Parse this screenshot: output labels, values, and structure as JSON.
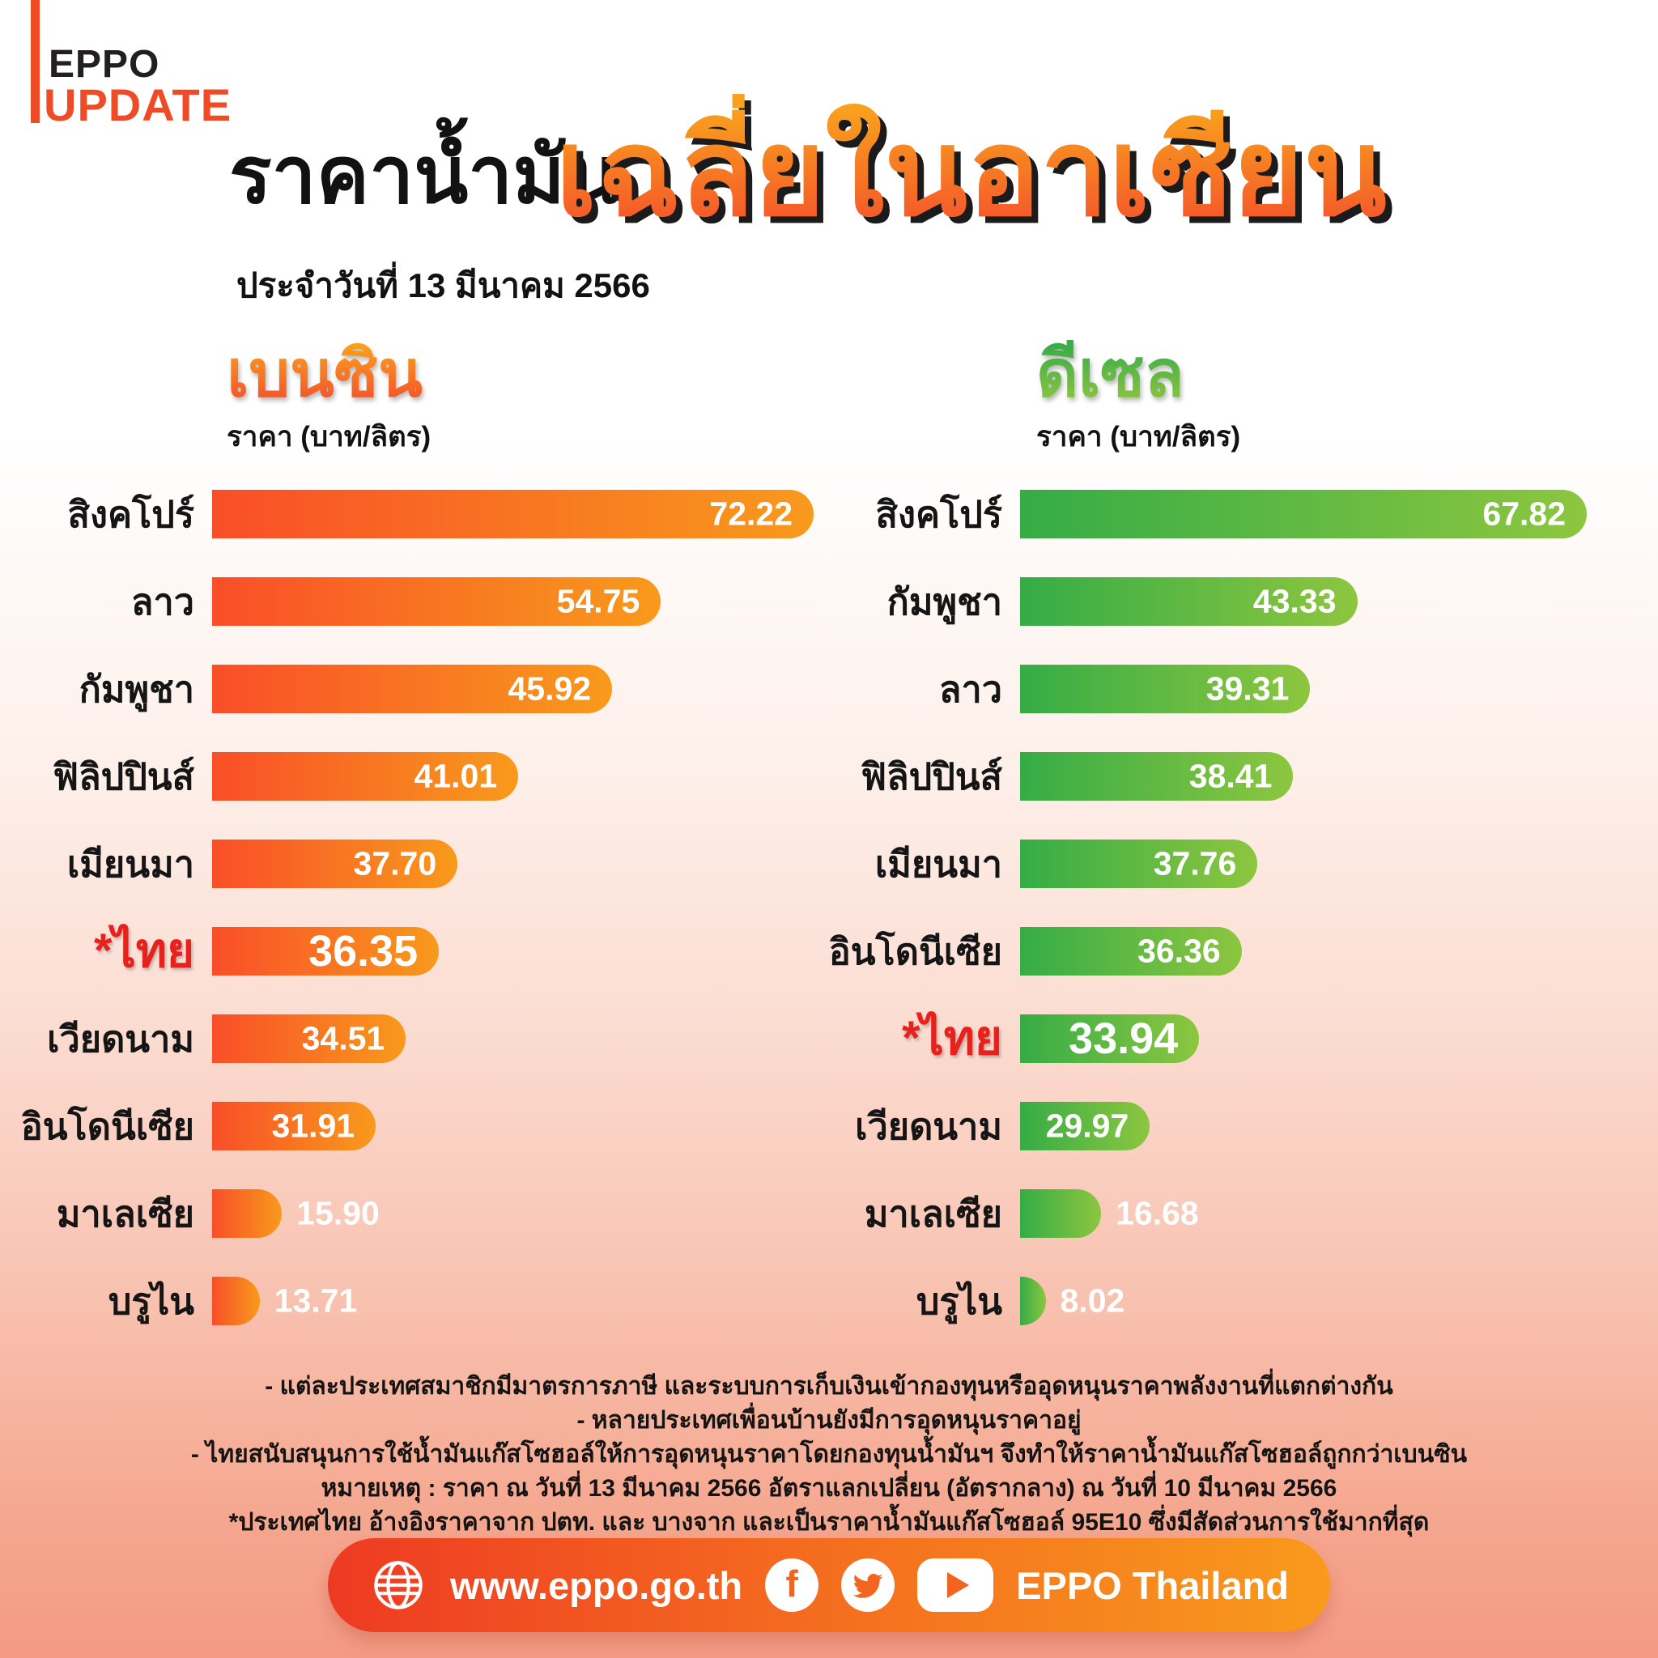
{
  "logo": {
    "line1": "EPPO",
    "line2": "UPDATE"
  },
  "title": {
    "black": "ราคาน้ำมัน",
    "date_line": "ประจำวันที่ 13 มีนาคม 2566",
    "orange": "เฉลี่ยในอาเซียน"
  },
  "colors": {
    "accent_red_orange": "#F04B27",
    "benzine_bar_start": "#F94E28",
    "benzine_bar_end": "#F89A1C",
    "diesel_bar_start": "#35AC46",
    "diesel_bar_end": "#8DC63F",
    "highlight_label": "#E8211D",
    "background_bottom": "#F49A85"
  },
  "chart_data": [
    {
      "type": "bar",
      "title": "เบนซิน",
      "unit_label": "ราคา (บาท/ลิตร)",
      "categories": [
        "สิงคโปร์",
        "ลาว",
        "กัมพูชา",
        "ฟิลิปปินส์",
        "เมียนมา",
        "*ไทย",
        "เวียดนาม",
        "อินโดนีเซีย",
        "มาเลเซีย",
        "บรูไน"
      ],
      "values": [
        72.22,
        54.75,
        45.92,
        41.01,
        37.7,
        36.35,
        34.51,
        31.91,
        15.9,
        13.71
      ],
      "value_labels": [
        "72.22",
        "54.75",
        "45.92",
        "41.01",
        "37.70",
        "36.35",
        "34.51",
        "31.91",
        "15.90",
        "13.71"
      ],
      "highlight_index": 5,
      "bar_colors": [
        "#F94E28",
        "#F89A1C"
      ],
      "xlim": [
        0,
        75
      ],
      "layout": {
        "bar_width_pct": [
          100,
          74.6,
          66.5,
          50.9,
          40.8,
          37.7,
          32.2,
          27.2,
          11.6,
          7.9
        ],
        "value_outside": [
          false,
          false,
          false,
          false,
          false,
          false,
          false,
          false,
          true,
          true
        ]
      }
    },
    {
      "type": "bar",
      "title": "ดีเซล",
      "unit_label": "ราคา (บาท/ลิตร)",
      "categories": [
        "สิงคโปร์",
        "กัมพูชา",
        "ลาว",
        "ฟิลิปปินส์",
        "เมียนมา",
        "อินโดนีเซีย",
        "*ไทย",
        "เวียดนาม",
        "มาเลเซีย",
        "บรูไน"
      ],
      "values": [
        67.82,
        43.33,
        39.31,
        38.41,
        37.76,
        36.36,
        33.94,
        29.97,
        16.68,
        8.02
      ],
      "value_labels": [
        "67.82",
        "43.33",
        "39.31",
        "38.41",
        "37.76",
        "36.36",
        "33.94",
        "29.97",
        "16.68",
        "8.02"
      ],
      "highlight_index": 6,
      "bar_colors": [
        "#35AC46",
        "#8DC63F"
      ],
      "xlim": [
        0,
        70
      ],
      "layout": {
        "bar_width_pct": [
          100,
          59.5,
          51.2,
          48.2,
          41.9,
          39.1,
          31.6,
          22.9,
          14.3,
          4.5
        ],
        "value_outside": [
          false,
          false,
          false,
          false,
          false,
          false,
          false,
          false,
          true,
          true
        ]
      }
    }
  ],
  "notes": [
    "- แต่ละประเทศสมาชิกมีมาตรการภาษี และระบบการเก็บเงินเข้ากองทุนหรืออุดหนุนราคาพลังงานที่แตกต่างกัน",
    "- หลายประเทศเพื่อนบ้านยังมีการอุดหนุนราคาอยู่",
    "- ไทยสนับสนุนการใช้น้ำมันแก๊สโซฮอล์ให้การอุดหนุนราคาโดยกองทุนน้ำมันฯ จึงทำให้ราคาน้ำมันแก๊สโซฮอล์ถูกกว่าเบนซิน",
    "หมายเหตุ : ราคา ณ วันที่ 13 มีนาคม 2566 อัตราแลกเปลี่ยน (อัตรากลาง) ณ วันที่ 10 มีนาคม 2566",
    "*ประเทศไทย อ้างอิงราคาจาก ปตท. และ บางจาก และเป็นราคาน้ำมันแก๊สโซฮอล์ 95E10 ซึ่งมีสัดส่วนการใช้มากที่สุด"
  ],
  "footer": {
    "website": "www.eppo.go.th",
    "brand": "EPPO Thailand",
    "icons": [
      "globe-icon",
      "facebook-icon",
      "twitter-icon",
      "youtube-icon"
    ]
  }
}
